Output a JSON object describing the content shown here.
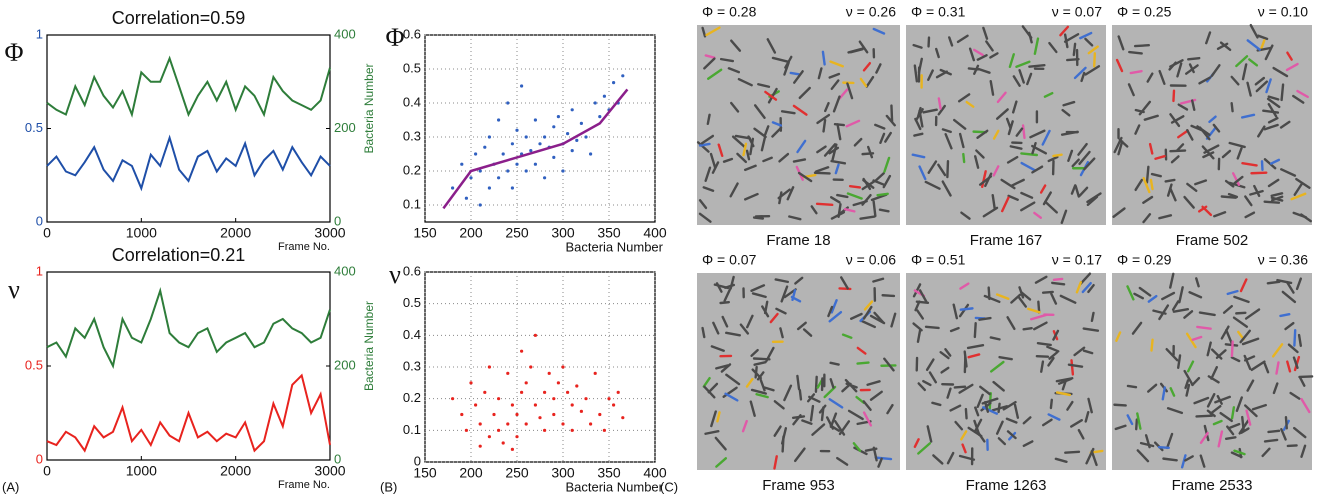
{
  "chart_data": [
    {
      "type": "line",
      "title": "Correlation=0.59",
      "ylabel": "Φ",
      "y2label": "Bacteria Number",
      "xlabel": "Frame No.",
      "x": [
        0,
        100,
        200,
        300,
        400,
        500,
        600,
        700,
        800,
        900,
        1000,
        1100,
        1200,
        1300,
        1400,
        1500,
        1600,
        1700,
        1800,
        1900,
        2000,
        2100,
        2200,
        2300,
        2400,
        2500,
        2600,
        2700,
        2800,
        2900,
        3000
      ],
      "xlim": [
        0,
        3000
      ],
      "xticks": [
        0,
        1000,
        2000,
        3000
      ],
      "ylim": [
        0,
        1
      ],
      "yticks": [
        0,
        0.5,
        1
      ],
      "y2lim": [
        0,
        400
      ],
      "y2ticks": [
        0,
        200,
        400
      ],
      "series": [
        {
          "color": "#1f4fa8",
          "values": [
            0.3,
            0.35,
            0.27,
            0.25,
            0.32,
            0.4,
            0.28,
            0.22,
            0.33,
            0.3,
            0.18,
            0.36,
            0.3,
            0.45,
            0.28,
            0.22,
            0.35,
            0.38,
            0.27,
            0.34,
            0.3,
            0.42,
            0.25,
            0.33,
            0.38,
            0.28,
            0.4,
            0.32,
            0.25,
            0.35,
            0.3
          ]
        },
        {
          "color": "#2e7d3a",
          "axis": "y2",
          "values": [
            255,
            240,
            230,
            290,
            250,
            310,
            270,
            245,
            280,
            230,
            320,
            300,
            300,
            350,
            290,
            230,
            270,
            300,
            260,
            300,
            240,
            290,
            270,
            230,
            310,
            280,
            260,
            250,
            240,
            260,
            330
          ]
        }
      ]
    },
    {
      "type": "line",
      "title": "Correlation=0.21",
      "ylabel": "ν",
      "y2label": "Bacteria Number",
      "xlabel": "Frame No.",
      "x": [
        0,
        100,
        200,
        300,
        400,
        500,
        600,
        700,
        800,
        900,
        1000,
        1100,
        1200,
        1300,
        1400,
        1500,
        1600,
        1700,
        1800,
        1900,
        2000,
        2100,
        2200,
        2300,
        2400,
        2500,
        2600,
        2700,
        2800,
        2900,
        3000
      ],
      "xlim": [
        0,
        3000
      ],
      "xticks": [
        0,
        1000,
        2000,
        3000
      ],
      "ylim": [
        0,
        1
      ],
      "yticks": [
        0,
        0.5,
        1
      ],
      "y2lim": [
        0,
        400
      ],
      "y2ticks": [
        0,
        200,
        400
      ],
      "series": [
        {
          "color": "#e8231e",
          "values": [
            0.1,
            0.08,
            0.15,
            0.12,
            0.05,
            0.18,
            0.12,
            0.15,
            0.28,
            0.1,
            0.16,
            0.08,
            0.2,
            0.13,
            0.1,
            0.25,
            0.12,
            0.15,
            0.1,
            0.14,
            0.12,
            0.2,
            0.05,
            0.1,
            0.3,
            0.18,
            0.4,
            0.45,
            0.25,
            0.35,
            0.08
          ]
        },
        {
          "color": "#2e7d3a",
          "axis": "y2",
          "values": [
            240,
            250,
            220,
            280,
            260,
            300,
            240,
            200,
            300,
            260,
            250,
            300,
            360,
            270,
            250,
            240,
            270,
            280,
            230,
            250,
            260,
            270,
            240,
            250,
            290,
            300,
            280,
            270,
            250,
            260,
            320
          ]
        }
      ]
    },
    {
      "type": "scatter",
      "ylabel": "Φ",
      "xlabel": "Bacteria Number",
      "color": "#3060c0",
      "grid": true,
      "xlim": [
        150,
        400
      ],
      "xticks": [
        150,
        200,
        250,
        300,
        350,
        400
      ],
      "ylim": [
        0.05,
        0.6
      ],
      "yticks": [
        0.1,
        0.2,
        0.3,
        0.4,
        0.5,
        0.6
      ],
      "x": [
        180,
        190,
        195,
        200,
        205,
        210,
        210,
        215,
        220,
        220,
        225,
        230,
        230,
        235,
        240,
        240,
        245,
        245,
        250,
        250,
        255,
        255,
        260,
        260,
        265,
        270,
        270,
        275,
        280,
        280,
        285,
        290,
        290,
        295,
        300,
        300,
        305,
        310,
        310,
        315,
        320,
        325,
        330,
        335,
        340,
        345,
        350,
        355,
        360,
        365
      ],
      "y": [
        0.15,
        0.22,
        0.12,
        0.18,
        0.25,
        0.1,
        0.2,
        0.27,
        0.15,
        0.3,
        0.22,
        0.18,
        0.35,
        0.25,
        0.2,
        0.4,
        0.28,
        0.15,
        0.22,
        0.32,
        0.25,
        0.45,
        0.2,
        0.3,
        0.26,
        0.35,
        0.22,
        0.28,
        0.3,
        0.18,
        0.27,
        0.33,
        0.24,
        0.36,
        0.28,
        0.2,
        0.31,
        0.26,
        0.38,
        0.29,
        0.34,
        0.3,
        0.25,
        0.4,
        0.36,
        0.42,
        0.38,
        0.46,
        0.4,
        0.48
      ],
      "fit": {
        "color": "#8b1f8b",
        "x": [
          170,
          200,
          250,
          300,
          340,
          370
        ],
        "y": [
          0.09,
          0.2,
          0.24,
          0.28,
          0.34,
          0.44
        ]
      }
    },
    {
      "type": "scatter",
      "ylabel": "ν",
      "xlabel": "Bacteria Number",
      "color": "#e8231e",
      "grid": true,
      "xlim": [
        150,
        400
      ],
      "xticks": [
        150,
        200,
        250,
        300,
        350,
        400
      ],
      "ylim": [
        0,
        0.6
      ],
      "yticks": [
        0,
        0.1,
        0.2,
        0.3,
        0.4,
        0.5,
        0.6
      ],
      "x": [
        180,
        190,
        195,
        200,
        205,
        210,
        210,
        215,
        220,
        220,
        225,
        230,
        230,
        235,
        240,
        240,
        245,
        245,
        250,
        250,
        255,
        255,
        260,
        260,
        265,
        270,
        270,
        275,
        280,
        280,
        285,
        290,
        290,
        295,
        300,
        300,
        305,
        310,
        310,
        315,
        320,
        325,
        330,
        335,
        340,
        345,
        350,
        355,
        360,
        365
      ],
      "y": [
        0.2,
        0.15,
        0.1,
        0.25,
        0.18,
        0.05,
        0.12,
        0.22,
        0.08,
        0.3,
        0.15,
        0.1,
        0.2,
        0.06,
        0.12,
        0.28,
        0.04,
        0.18,
        0.08,
        0.15,
        0.35,
        0.22,
        0.12,
        0.25,
        0.3,
        0.18,
        0.4,
        0.14,
        0.22,
        0.1,
        0.28,
        0.2,
        0.15,
        0.25,
        0.12,
        0.3,
        0.22,
        0.18,
        0.1,
        0.24,
        0.16,
        0.2,
        0.12,
        0.28,
        0.15,
        0.1,
        0.2,
        0.18,
        0.22,
        0.14
      ]
    }
  ],
  "images": [
    {
      "phi": "Φ = 0.28",
      "nu": "ν = 0.26",
      "frame": "Frame 18"
    },
    {
      "phi": "Φ = 0.31",
      "nu": "ν = 0.07",
      "frame": "Frame 167"
    },
    {
      "phi": "Φ = 0.25",
      "nu": "ν = 0.10",
      "frame": "Frame 502"
    },
    {
      "phi": "Φ = 0.07",
      "nu": "ν = 0.06",
      "frame": "Frame 953"
    },
    {
      "phi": "Φ = 0.51",
      "nu": "ν = 0.17",
      "frame": "Frame 1263"
    },
    {
      "phi": "Φ = 0.29",
      "nu": "ν = 0.36",
      "frame": "Frame 2533"
    }
  ],
  "panel_labels": [
    "(A)",
    "(B)",
    "(C)"
  ]
}
